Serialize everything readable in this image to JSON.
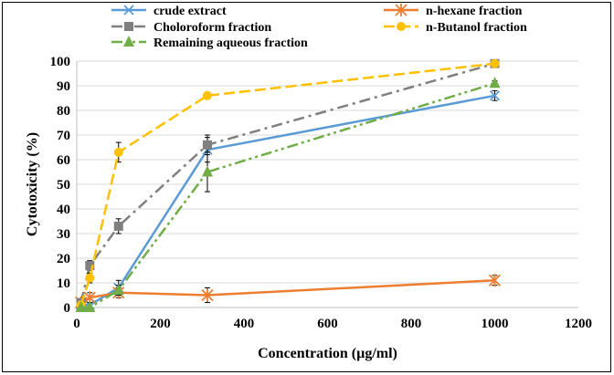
{
  "chart_data": {
    "type": "line",
    "xlabel": "Concentration  (µg/ml)",
    "ylabel": "Cytotoxicity  (%)",
    "xlim": [
      0,
      1200
    ],
    "ylim": [
      0,
      100
    ],
    "xticks": [
      0,
      200,
      400,
      600,
      800,
      1000,
      1200
    ],
    "yticks": [
      0,
      10,
      20,
      30,
      40,
      50,
      60,
      70,
      80,
      90,
      100
    ],
    "grid": "horizontal",
    "legend_position": "top",
    "series": [
      {
        "name": "crude extract",
        "color": "#5B9BD5",
        "marker": "x",
        "dash": "solid",
        "x": [
          10,
          31.25,
          100,
          312.5,
          1000
        ],
        "y": [
          1,
          1,
          8,
          64,
          86
        ],
        "err": [
          0,
          0,
          3,
          5,
          2
        ]
      },
      {
        "name": "n-hexane fraction",
        "color": "#ED7D31",
        "marker": "star",
        "dash": "solid",
        "x": [
          10,
          31.25,
          100,
          312.5,
          1000
        ],
        "y": [
          2,
          4,
          6,
          5,
          11
        ],
        "err": [
          0,
          2,
          2,
          3,
          2
        ]
      },
      {
        "name": "Choloroform fraction",
        "color": "#808080",
        "marker": "square",
        "dash": "dashdot",
        "x": [
          10,
          31.25,
          100,
          312.5,
          1000
        ],
        "y": [
          2,
          17,
          33,
          66,
          99
        ],
        "err": [
          0,
          2,
          3,
          4,
          1
        ]
      },
      {
        "name": "n-Butanol fraction",
        "color": "#FFC000",
        "marker": "circle",
        "dash": "dashed",
        "x": [
          10,
          31.25,
          100,
          312.5,
          1000
        ],
        "y": [
          1,
          12,
          63,
          86,
          99
        ],
        "err": [
          0,
          2,
          4,
          1,
          1
        ]
      },
      {
        "name": "Remaining aqueous fraction",
        "color": "#70AD47",
        "marker": "triangle",
        "dash": "dashdotdot",
        "x": [
          10,
          31.25,
          100,
          312.5,
          1000
        ],
        "y": [
          0,
          0,
          7,
          55,
          91
        ],
        "err": [
          0,
          0,
          2,
          8,
          1
        ]
      }
    ]
  }
}
